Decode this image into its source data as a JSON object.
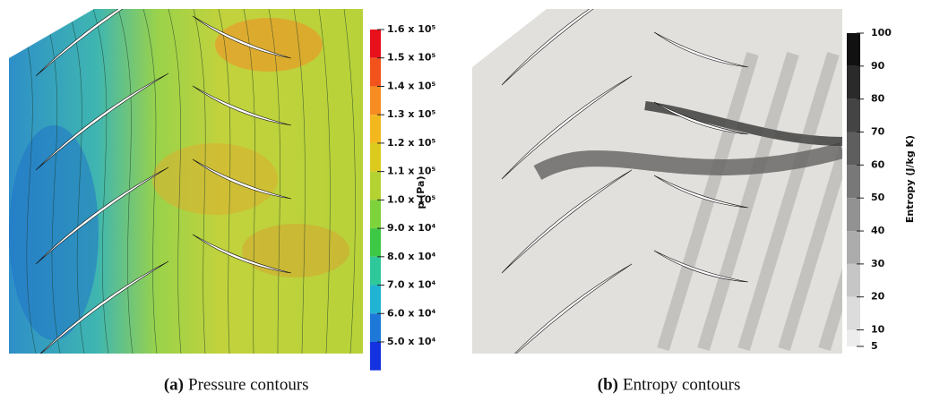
{
  "panels": [
    {
      "colorbar": {
        "title": "p (Pa)",
        "ticks": [
          {
            "value": 160000,
            "label": "1.6 x 10⁵"
          },
          {
            "value": 150000,
            "label": "1.5 x 10⁵"
          },
          {
            "value": 140000,
            "label": "1.4 x 10⁵"
          },
          {
            "value": 130000,
            "label": "1.3 x 10⁵"
          },
          {
            "value": 120000,
            "label": "1.2 x 10⁵"
          },
          {
            "value": 110000,
            "label": "1.1 x 10⁵"
          },
          {
            "value": 100000,
            "label": "1.0 x 10⁵"
          },
          {
            "value": 90000,
            "label": "9.0 x 10⁴"
          },
          {
            "value": 80000,
            "label": "8.0 x 10⁴"
          },
          {
            "value": 70000,
            "label": "7.0 x 10⁴"
          },
          {
            "value": 60000,
            "label": "6.0 x 10⁴"
          },
          {
            "value": 50000,
            "label": "5.0 x 10⁴"
          }
        ],
        "colors": [
          "#e8101a",
          "#f2531c",
          "#f68c22",
          "#f2b81e",
          "#dccb1e",
          "#b4d232",
          "#7ed23c",
          "#3ec846",
          "#2ec89a",
          "#20b4d2",
          "#1e78d8",
          "#1432e0"
        ]
      },
      "caption": {
        "label": "(a)",
        "text": "Pressure contours"
      }
    },
    {
      "colorbar": {
        "title": "Entropy (J/kg K)",
        "ticks": [
          100,
          90,
          80,
          70,
          60,
          50,
          40,
          30,
          20,
          10,
          5
        ],
        "colors": [
          "#111111",
          "#2a2a2a",
          "#444444",
          "#5e5e5e",
          "#787878",
          "#929292",
          "#acacac",
          "#c6c6c6",
          "#dcdcdc",
          "#ececec"
        ]
      },
      "caption": {
        "label": "(b)",
        "text": "Entropy contours"
      }
    }
  ]
}
